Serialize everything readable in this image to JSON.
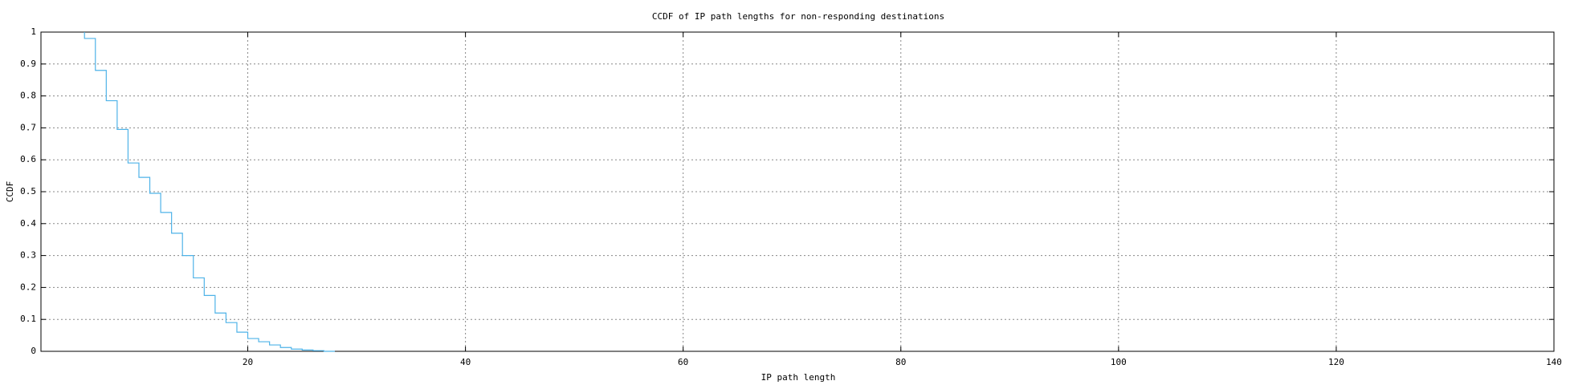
{
  "chart_data": {
    "type": "line",
    "step": "fsteps",
    "title": "CCDF of IP path lengths for non-responding destinations",
    "xlabel": "IP path length",
    "ylabel": "CCDF",
    "x": [
      5,
      6,
      7,
      8,
      9,
      10,
      11,
      12,
      13,
      14,
      15,
      16,
      17,
      18,
      19,
      20,
      21,
      22,
      23,
      24,
      25,
      26,
      27,
      28
    ],
    "series": [
      {
        "name": "CCDF",
        "color": "#4fb3e8",
        "values": [
          1,
          0.98,
          0.88,
          0.785,
          0.695,
          0.59,
          0.545,
          0.495,
          0.435,
          0.37,
          0.3,
          0.23,
          0.175,
          0.12,
          0.09,
          0.06,
          0.04,
          0.03,
          0.02,
          0.012,
          0.007,
          0.004,
          0.002,
          0
        ]
      }
    ],
    "xlim": [
      1,
      140
    ],
    "ylim": [
      0,
      1
    ],
    "xticks": [
      20,
      40,
      60,
      80,
      100,
      120,
      140
    ],
    "yticks": [
      0,
      0.1,
      0.2,
      0.3,
      0.4,
      0.5,
      0.6,
      0.7,
      0.8,
      0.9,
      1
    ],
    "grid": true
  }
}
